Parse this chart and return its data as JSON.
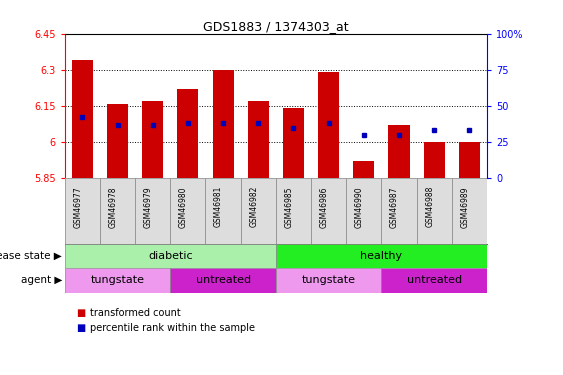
{
  "title": "GDS1883 / 1374303_at",
  "samples": [
    "GSM46977",
    "GSM46978",
    "GSM46979",
    "GSM46980",
    "GSM46981",
    "GSM46982",
    "GSM46985",
    "GSM46986",
    "GSM46990",
    "GSM46987",
    "GSM46988",
    "GSM46989"
  ],
  "bar_values": [
    6.34,
    6.16,
    6.17,
    6.22,
    6.3,
    6.17,
    6.14,
    6.29,
    5.92,
    6.07,
    6.0,
    6.0
  ],
  "percentile_pct": [
    42,
    37,
    37,
    38,
    38,
    38,
    35,
    38,
    30,
    30,
    33,
    33
  ],
  "ymin": 5.85,
  "ymax": 6.45,
  "yticks": [
    5.85,
    6.0,
    6.15,
    6.3,
    6.45
  ],
  "ytick_labels": [
    "5.85",
    "6",
    "6.15",
    "6.3",
    "6.45"
  ],
  "right_yticks": [
    0,
    25,
    50,
    75,
    100
  ],
  "right_ytick_labels": [
    "0",
    "25",
    "50",
    "75",
    "100%"
  ],
  "grid_lines": [
    6.0,
    6.15,
    6.3
  ],
  "disease_state_groups": [
    {
      "label": "diabetic",
      "start": 0,
      "end": 6,
      "color": "#aaf0aa"
    },
    {
      "label": "healthy",
      "start": 6,
      "end": 12,
      "color": "#22ee22"
    }
  ],
  "agent_groups": [
    {
      "label": "tungstate",
      "start": 0,
      "end": 3,
      "color": "#ee99ee"
    },
    {
      "label": "untreated",
      "start": 3,
      "end": 6,
      "color": "#cc22cc"
    },
    {
      "label": "tungstate",
      "start": 6,
      "end": 9,
      "color": "#ee99ee"
    },
    {
      "label": "untreated",
      "start": 9,
      "end": 12,
      "color": "#cc22cc"
    }
  ],
  "bar_color": "#cc0000",
  "dot_color": "#0000bb",
  "bar_width": 0.6,
  "label_disease": "disease state",
  "label_agent": "agent",
  "legend_items": [
    "transformed count",
    "percentile rank within the sample"
  ]
}
